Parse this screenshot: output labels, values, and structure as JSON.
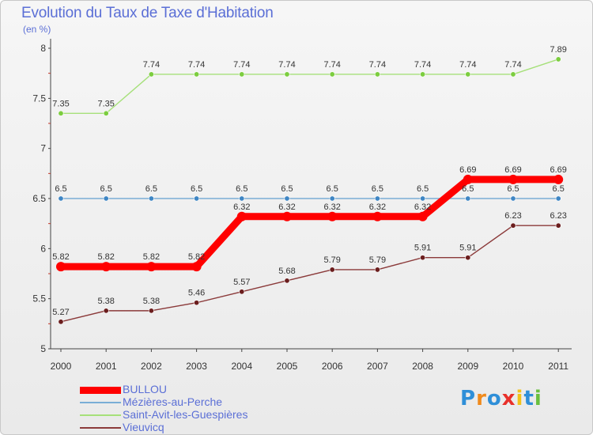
{
  "chart_data": {
    "type": "line",
    "title": "Evolution du Taux de Taxe d'Habitation",
    "subtitle": "(en %)",
    "categories": [
      "2000",
      "2001",
      "2002",
      "2003",
      "2004",
      "2005",
      "2006",
      "2007",
      "2008",
      "2009",
      "2010",
      "2011"
    ],
    "ylim": [
      5,
      8
    ],
    "yticks": [
      "5",
      "5.5",
      "6",
      "6.5",
      "7",
      "7.5",
      "8"
    ],
    "series": [
      {
        "name": "BULLOU",
        "color": "#ff0000",
        "marker_color": "#ff0000",
        "values": [
          5.82,
          5.82,
          5.82,
          5.82,
          6.32,
          6.32,
          6.32,
          6.32,
          6.32,
          6.69,
          6.69,
          6.69
        ],
        "labels": [
          "5.82",
          "5.82",
          "5.82",
          "5.82",
          "6.32",
          "6.32",
          "6.32",
          "6.32",
          "6.32",
          "6.69",
          "6.69",
          "6.69"
        ]
      },
      {
        "name": "Mézières-au-Perche",
        "color": "#7aaed6",
        "marker_color": "#3f86c4",
        "values": [
          6.5,
          6.5,
          6.5,
          6.5,
          6.5,
          6.5,
          6.5,
          6.5,
          6.5,
          6.5,
          6.5,
          6.5
        ],
        "labels": [
          "6.5",
          "6.5",
          "6.5",
          "6.5",
          "6.5",
          "6.5",
          "6.5",
          "6.5",
          "6.5",
          "6.5",
          "6.5",
          "6.5"
        ]
      },
      {
        "name": "Saint-Avit-les-Guespières",
        "color": "#a6e07a",
        "marker_color": "#7ccd3f",
        "values": [
          7.35,
          7.35,
          7.74,
          7.74,
          7.74,
          7.74,
          7.74,
          7.74,
          7.74,
          7.74,
          7.74,
          7.89
        ],
        "labels": [
          "7.35",
          "7.35",
          "7.74",
          "7.74",
          "7.74",
          "7.74",
          "7.74",
          "7.74",
          "7.74",
          "7.74",
          "7.74",
          "7.89"
        ]
      },
      {
        "name": "Vieuvicq",
        "color": "#8b3a3a",
        "marker_color": "#6b1e1e",
        "values": [
          5.27,
          5.38,
          5.38,
          5.46,
          5.57,
          5.68,
          5.79,
          5.79,
          5.91,
          5.91,
          6.23,
          6.23
        ],
        "labels": [
          "5.27",
          "5.38",
          "5.38",
          "5.46",
          "5.57",
          "5.68",
          "5.79",
          "5.79",
          "5.91",
          "5.91",
          "6.23",
          "6.23"
        ]
      }
    ],
    "legend_position": "bottom-left",
    "grid": false
  },
  "logo": {
    "text": "Proxiti",
    "letters": [
      "P",
      "r",
      "o",
      "x",
      "i",
      "t",
      "i"
    ],
    "colors": [
      "#2f8fd8",
      "#f08a1c",
      "#2f8fd8",
      "#e8302a",
      "#f2c21a",
      "#2f8fd8",
      "#6abf3f"
    ]
  }
}
